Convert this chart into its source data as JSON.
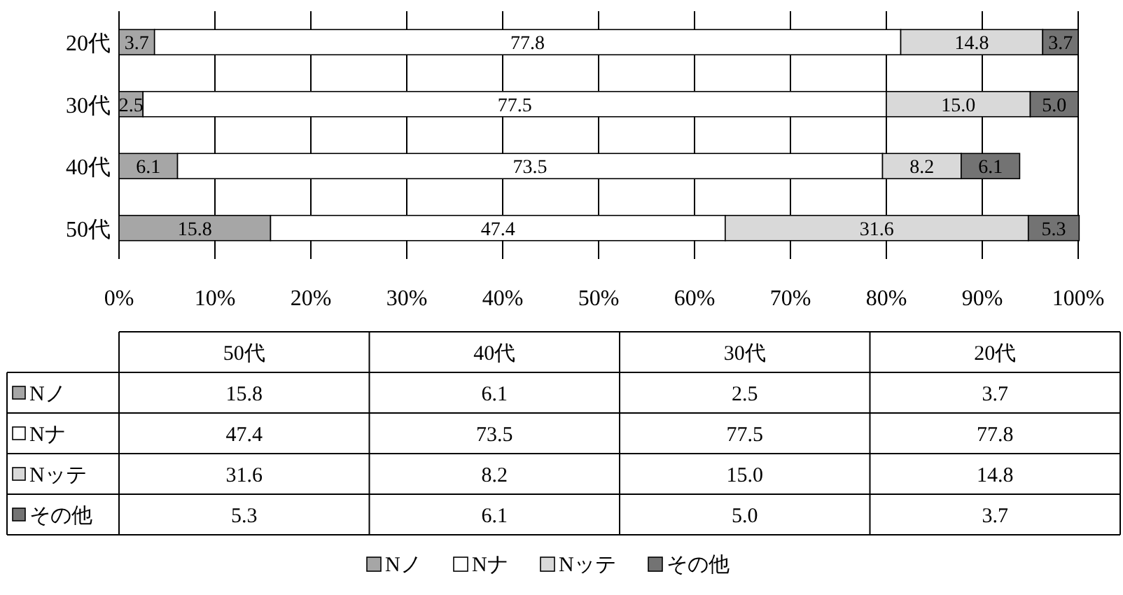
{
  "chart_data": {
    "type": "bar",
    "orientation": "horizontal",
    "stacked": true,
    "categories": [
      "20代",
      "30代",
      "40代",
      "50代"
    ],
    "series": [
      {
        "name": "Nノ",
        "color": "#a6a6a6",
        "values": [
          3.7,
          2.5,
          6.1,
          15.8
        ],
        "value_labels": [
          "3.7",
          "2.5",
          "6.1",
          "15.8"
        ]
      },
      {
        "name": "Nナ",
        "color": "#ffffff",
        "values": [
          77.8,
          77.5,
          73.5,
          47.4
        ],
        "value_labels": [
          "77.8",
          "77.5",
          "73.5",
          "47.4"
        ]
      },
      {
        "name": "Nッテ",
        "color": "#d9d9d9",
        "values": [
          14.8,
          15.0,
          8.2,
          31.6
        ],
        "value_labels": [
          "14.8",
          "15.0",
          "8.2",
          "31.6"
        ]
      },
      {
        "name": "その他",
        "color": "#737373",
        "values": [
          3.7,
          5.0,
          6.1,
          5.3
        ],
        "value_labels": [
          "3.7",
          "5.0",
          "6.1",
          "5.3"
        ]
      }
    ],
    "xlim": [
      0,
      100
    ],
    "xticks": [
      {
        "value": 0,
        "label": "0%"
      },
      {
        "value": 10,
        "label": "10%"
      },
      {
        "value": 20,
        "label": "20%"
      },
      {
        "value": 30,
        "label": "30%"
      },
      {
        "value": 40,
        "label": "40%"
      },
      {
        "value": 50,
        "label": "50%"
      },
      {
        "value": 60,
        "label": "60%"
      },
      {
        "value": 70,
        "label": "70%"
      },
      {
        "value": 80,
        "label": "80%"
      },
      {
        "value": 90,
        "label": "90%"
      },
      {
        "value": 100,
        "label": "100%"
      }
    ],
    "grid": "x",
    "legend": "bottom"
  }
}
